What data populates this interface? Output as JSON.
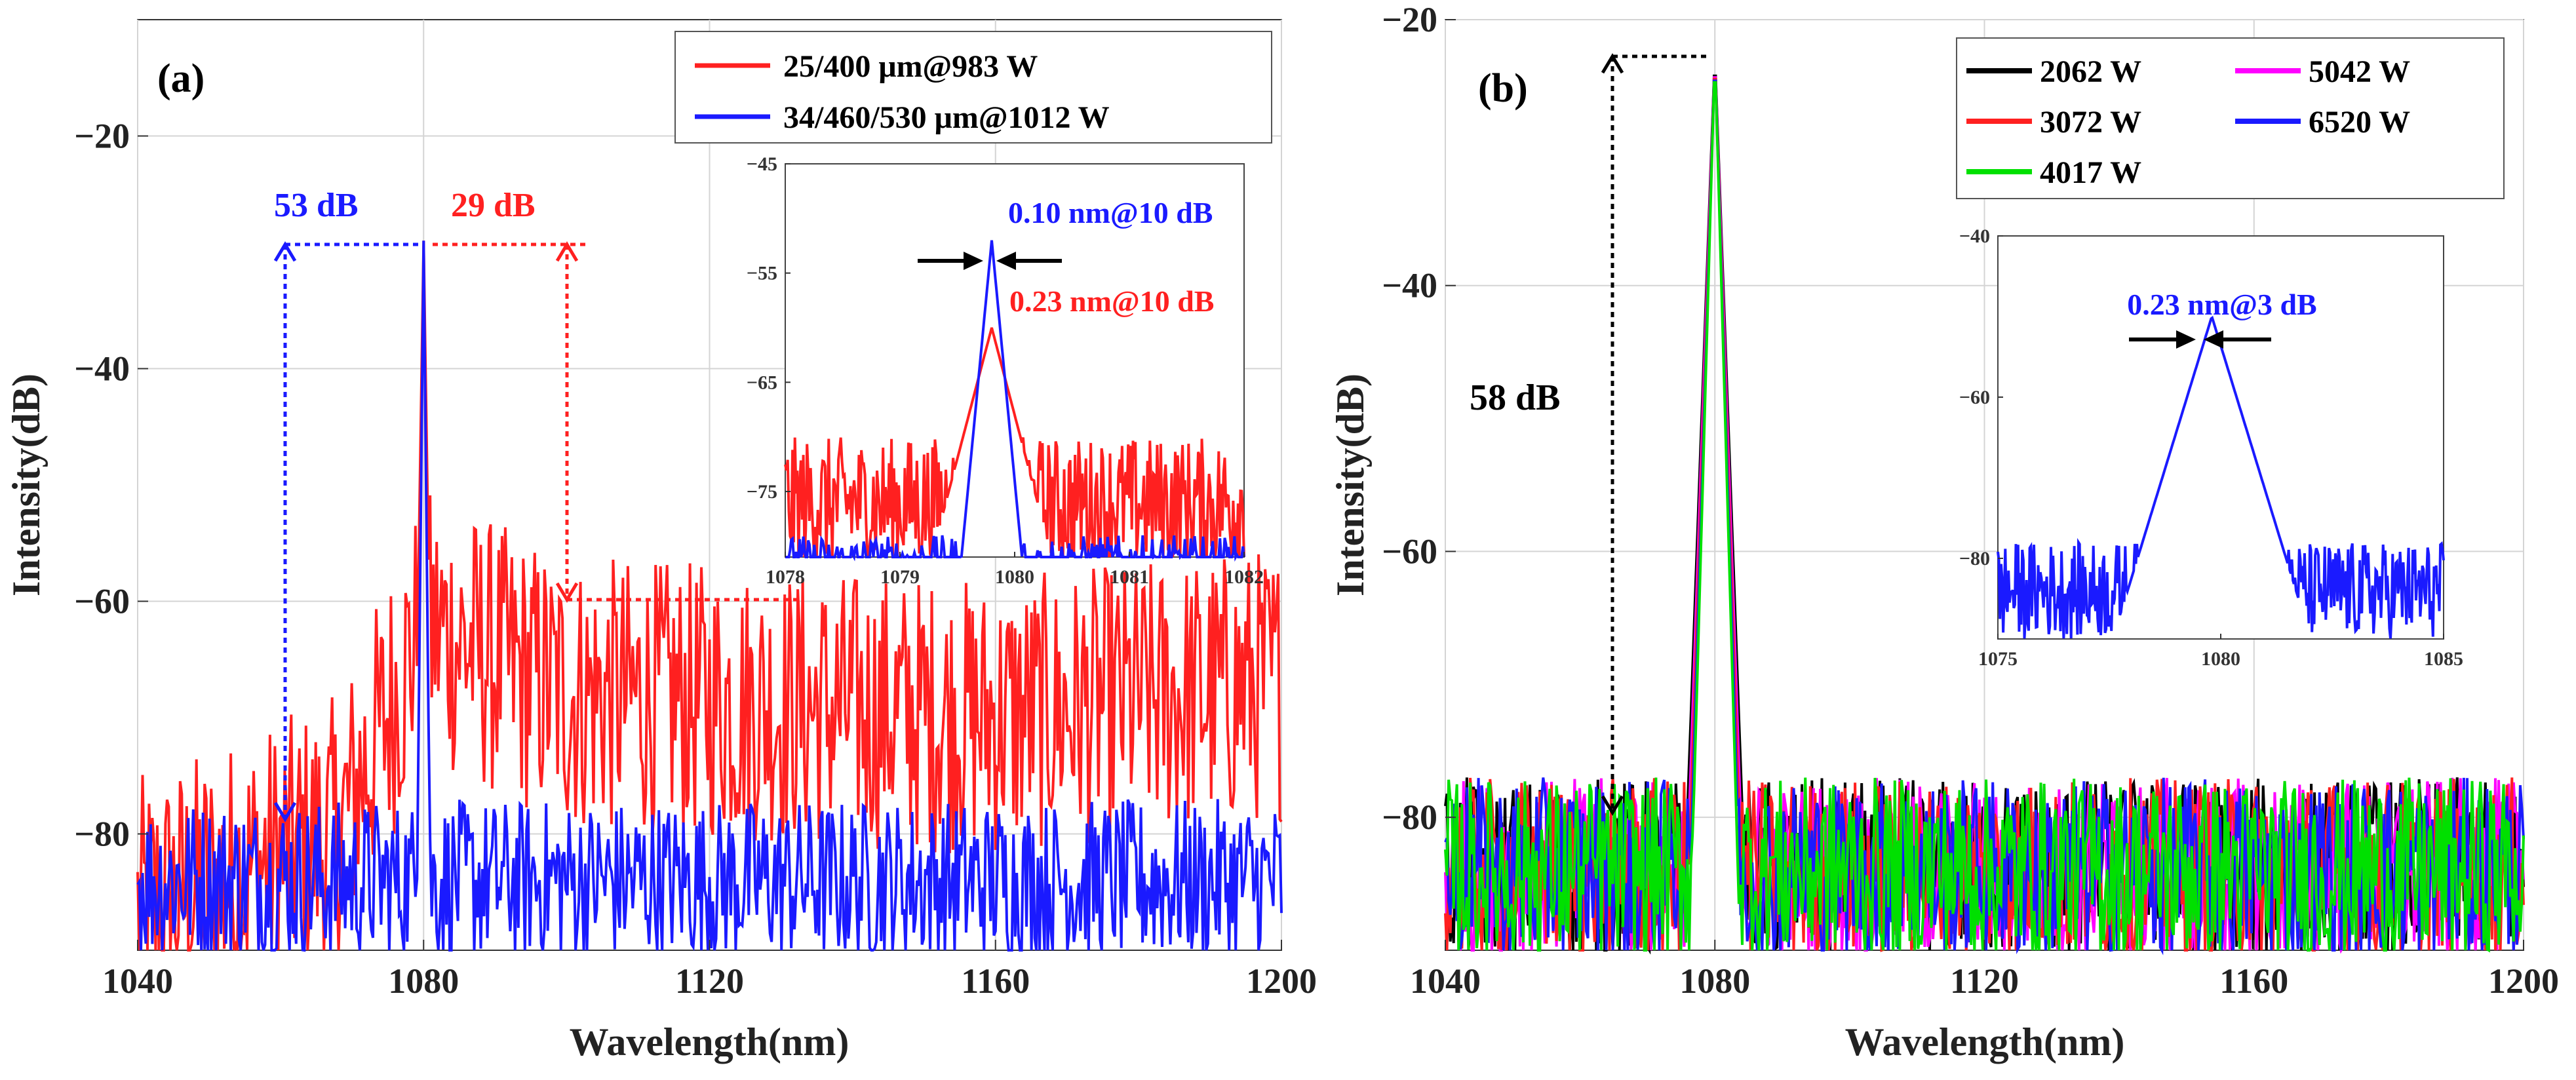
{
  "chart_data": [
    {
      "panel": "a",
      "panel_label": "(a)",
      "type": "line",
      "xlabel": "Wavelength(nm)",
      "ylabel": "Intensity(dB)",
      "xlim": [
        1040,
        1200
      ],
      "ylim": [
        -90,
        -10
      ],
      "xticks": [
        1040,
        1080,
        1120,
        1160,
        1200
      ],
      "yticks": [
        -80,
        -60,
        -40,
        -20
      ],
      "grid": true,
      "legend_position": "top-right",
      "series": [
        {
          "name": "25/400 μm@983 W",
          "color": "#ff2020",
          "peak_x": 1080,
          "peak_y": -29,
          "floor_x": [
            1040,
            1068,
            1080,
            1100,
            1160,
            1200
          ],
          "floor_y": [
            -87,
            -80,
            -62,
            -68,
            -70,
            -67
          ]
        },
        {
          "name": "34/460/530 μm@1012 W",
          "color": "#1a1aff",
          "peak_x": 1080,
          "peak_y": -29,
          "floor_x": [
            1040,
            1200
          ],
          "floor_y": [
            -84,
            -84
          ]
        }
      ],
      "annotations": [
        {
          "text": "53 dB",
          "color": "#1a1aff"
        },
        {
          "text": "29 dB",
          "color": "#ff2020"
        }
      ],
      "inset": {
        "xlim": [
          1078,
          1082
        ],
        "ylim": [
          -81,
          -45
        ],
        "xticks": [
          1078,
          1079,
          1080,
          1081,
          1082
        ],
        "yticks": [
          -45,
          -55,
          -65,
          -75
        ],
        "annotations": [
          {
            "text": "0.10 nm@10 dB",
            "color": "#1a1aff"
          },
          {
            "text": "0.23 nm@10 dB",
            "color": "#ff2020"
          }
        ]
      }
    },
    {
      "panel": "b",
      "panel_label": "(b)",
      "type": "line",
      "xlabel": "Wavelength(nm)",
      "ylabel": "Intensity(dB)",
      "xlim": [
        1040,
        1200
      ],
      "ylim": [
        -90,
        -20
      ],
      "xticks": [
        1040,
        1080,
        1120,
        1160,
        1200
      ],
      "yticks": [
        -80,
        -60,
        -40,
        -20
      ],
      "grid": true,
      "legend_position": "top-right",
      "series": [
        {
          "name": "2062 W",
          "color": "#000000"
        },
        {
          "name": "5042 W",
          "color": "#ff00ff"
        },
        {
          "name": "3072 W",
          "color": "#ff2020"
        },
        {
          "name": "6520 W",
          "color": "#1a1aff"
        },
        {
          "name": "4017 W",
          "color": "#00e000"
        }
      ],
      "peak_x": 1080,
      "peak_y": -22.5,
      "floor_y": -84,
      "annotations": [
        {
          "text": "58 dB",
          "color": "#000000"
        }
      ],
      "inset": {
        "xlim": [
          1075,
          1085
        ],
        "ylim": [
          -90,
          -40
        ],
        "xticks": [
          1075,
          1080,
          1085
        ],
        "yticks": [
          -40,
          -60,
          -80
        ],
        "annotations": [
          {
            "text": "0.23 nm@3 dB",
            "color": "#1a1aff"
          }
        ]
      }
    }
  ]
}
